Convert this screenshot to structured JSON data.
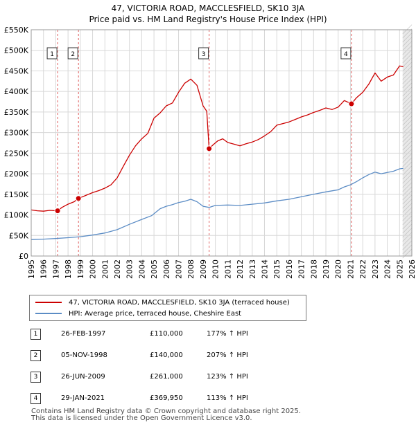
{
  "title_line1": "47, VICTORIA ROAD, MACCLESFIELD, SK10 3JA",
  "title_line2": "Price paid vs. HM Land Registry's House Price Index (HPI)",
  "legend": {
    "property_label": "47, VICTORIA ROAD, MACCLESFIELD, SK10 3JA (terraced house)",
    "hpi_label": "HPI: Average price, terraced house, Cheshire East"
  },
  "colors": {
    "property_line": "#cc0000",
    "hpi_line": "#5b8cc5",
    "future_shade": "#e8e8e8",
    "marker_line": "#e06060"
  },
  "chart_data": {
    "type": "line",
    "title": "Price paid vs. HM Land Registry's House Price Index (HPI)",
    "xlim": [
      1995,
      2026
    ],
    "ylim": [
      0,
      550000
    ],
    "y_ticks": [
      0,
      50000,
      100000,
      150000,
      200000,
      250000,
      300000,
      350000,
      400000,
      450000,
      500000,
      550000
    ],
    "y_tick_labels": [
      "£0",
      "£50K",
      "£100K",
      "£150K",
      "£200K",
      "£250K",
      "£300K",
      "£350K",
      "£400K",
      "£450K",
      "£500K",
      "£550K"
    ],
    "x_ticks": [
      1995,
      1996,
      1997,
      1998,
      1999,
      2000,
      2001,
      2002,
      2003,
      2004,
      2005,
      2006,
      2007,
      2008,
      2009,
      2010,
      2011,
      2012,
      2013,
      2014,
      2015,
      2016,
      2017,
      2018,
      2019,
      2020,
      2021,
      2022,
      2023,
      2024,
      2025,
      2026
    ],
    "x_tick_labels": [
      "1995",
      "1996",
      "1997",
      "1998",
      "1999",
      "2000",
      "2001",
      "2002",
      "2003",
      "2004",
      "2005",
      "2006",
      "2007",
      "2008",
      "2009",
      "2010",
      "2011",
      "2012",
      "2013",
      "2014",
      "2015",
      "2016",
      "2017",
      "2018",
      "2019",
      "2020",
      "2021",
      "2022",
      "2023",
      "2024",
      "2025",
      "2026"
    ],
    "future_from": 2025.25,
    "series": [
      {
        "name": "47, VICTORIA ROAD, MACCLESFIELD, SK10 3JA (terraced house)",
        "x": [
          1995.0,
          1995.5,
          1996.0,
          1996.5,
          1997.15,
          1997.5,
          1998.0,
          1998.5,
          1998.85,
          1999.5,
          2000.0,
          2000.5,
          2001.0,
          2001.5,
          2002.0,
          2002.5,
          2003.0,
          2003.5,
          2004.0,
          2004.5,
          2005.0,
          2005.5,
          2006.0,
          2006.5,
          2007.0,
          2007.5,
          2008.0,
          2008.5,
          2009.0,
          2009.3,
          2009.49,
          2009.8,
          2010.2,
          2010.6,
          2011.0,
          2011.5,
          2012.0,
          2012.5,
          2013.0,
          2013.5,
          2014.0,
          2014.5,
          2015.0,
          2015.5,
          2016.0,
          2016.5,
          2017.0,
          2017.5,
          2018.0,
          2018.5,
          2019.0,
          2019.5,
          2020.0,
          2020.5,
          2021.08,
          2021.5,
          2022.0,
          2022.5,
          2023.0,
          2023.5,
          2024.0,
          2024.5,
          2025.0,
          2025.3
        ],
        "values": [
          112000,
          110000,
          109000,
          111000,
          110000,
          118000,
          126000,
          132000,
          140000,
          148000,
          154000,
          159000,
          165000,
          173000,
          190000,
          218000,
          245000,
          268000,
          285000,
          298000,
          335000,
          348000,
          365000,
          372000,
          398000,
          420000,
          430000,
          415000,
          365000,
          352000,
          261000,
          270000,
          280000,
          285000,
          276000,
          272000,
          268000,
          273000,
          277000,
          283000,
          292000,
          302000,
          318000,
          322000,
          326000,
          332000,
          338000,
          343000,
          349000,
          354000,
          360000,
          356000,
          362000,
          378000,
          369950,
          385000,
          398000,
          418000,
          445000,
          425000,
          435000,
          440000,
          462000,
          460000
        ]
      },
      {
        "name": "HPI: Average price, terraced house, Cheshire East",
        "x": [
          1995.0,
          1996.0,
          1997.0,
          1998.0,
          1999.0,
          2000.0,
          2001.0,
          2002.0,
          2003.0,
          2004.0,
          2004.8,
          2005.5,
          2006.0,
          2006.5,
          2007.0,
          2007.5,
          2008.0,
          2008.5,
          2009.0,
          2009.5,
          2010.0,
          2011.0,
          2012.0,
          2013.0,
          2014.0,
          2015.0,
          2016.0,
          2017.0,
          2018.0,
          2019.0,
          2020.0,
          2020.5,
          2021.0,
          2021.5,
          2022.0,
          2022.5,
          2023.0,
          2023.5,
          2024.0,
          2024.5,
          2025.0,
          2025.3
        ],
        "values": [
          40000,
          41000,
          42500,
          44500,
          47000,
          51000,
          56000,
          64000,
          77000,
          89000,
          98000,
          115000,
          121000,
          125000,
          130000,
          133000,
          138000,
          132000,
          121000,
          118000,
          123000,
          124000,
          123000,
          126000,
          129000,
          134000,
          138000,
          144000,
          150000,
          156000,
          161000,
          168000,
          173000,
          181000,
          190000,
          198000,
          204000,
          200000,
          203000,
          206000,
          212000,
          213000
        ]
      }
    ],
    "sales": [
      {
        "label": "1",
        "x": 1997.15,
        "value": 110000
      },
      {
        "label": "2",
        "x": 1998.85,
        "value": 140000
      },
      {
        "label": "3",
        "x": 2009.49,
        "value": 261000
      },
      {
        "label": "4",
        "x": 2021.08,
        "value": 369950
      }
    ]
  },
  "table": [
    {
      "num": "1",
      "date": "26-FEB-1997",
      "price": "£110,000",
      "hpi": "177% ↑ HPI"
    },
    {
      "num": "2",
      "date": "05-NOV-1998",
      "price": "£140,000",
      "hpi": "207% ↑ HPI"
    },
    {
      "num": "3",
      "date": "26-JUN-2009",
      "price": "£261,000",
      "hpi": "123% ↑ HPI"
    },
    {
      "num": "4",
      "date": "29-JAN-2021",
      "price": "£369,950",
      "hpi": "113% ↑ HPI"
    }
  ],
  "footer": {
    "line1": "Contains HM Land Registry data © Crown copyright and database right 2025.",
    "line2": "This data is licensed under the Open Government Licence v3.0."
  }
}
